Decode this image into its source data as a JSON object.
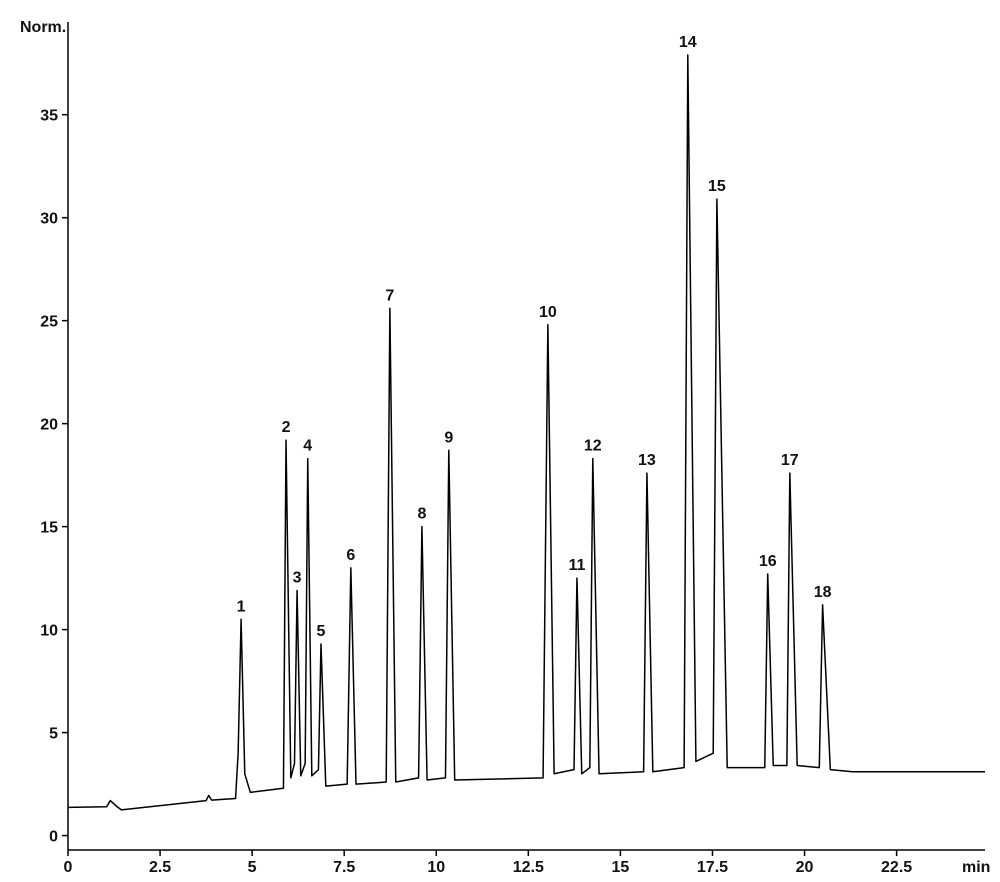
{
  "chart_data": {
    "type": "line",
    "y_label": "Norm.",
    "x_label": "min",
    "color": "#000000",
    "xlim": [
      0,
      24.9
    ],
    "ylim": [
      -0.7,
      39.5
    ],
    "xticks": [
      0,
      2.5,
      5,
      7.5,
      10,
      12.5,
      15,
      17.5,
      20,
      22.5
    ],
    "yticks": [
      0,
      5,
      10,
      15,
      20,
      25,
      30,
      35
    ],
    "x": [
      0,
      1.05,
      1.15,
      1.3,
      1.45,
      3.75,
      3.82,
      3.9,
      4.55,
      4.62,
      4.7,
      4.8,
      4.95,
      5.85,
      5.92,
      6.05,
      6.15,
      6.22,
      6.32,
      6.44,
      6.51,
      6.62,
      6.8,
      6.87,
      7.0,
      7.58,
      7.68,
      7.82,
      8.64,
      8.74,
      8.9,
      9.52,
      9.61,
      9.75,
      10.25,
      10.34,
      10.5,
      12.9,
      13.03,
      13.2,
      13.74,
      13.82,
      13.95,
      14.17,
      14.25,
      14.42,
      15.63,
      15.72,
      15.88,
      16.73,
      16.83,
      17.05,
      17.52,
      17.62,
      17.9,
      18.92,
      19.0,
      19.15,
      19.52,
      19.6,
      19.8,
      20.4,
      20.49,
      20.7,
      21.3,
      24.9
    ],
    "values": [
      1.37,
      1.4,
      1.7,
      1.45,
      1.25,
      1.7,
      1.95,
      1.72,
      1.8,
      4.0,
      10.5,
      3.0,
      2.1,
      2.3,
      19.2,
      2.8,
      3.5,
      11.9,
      2.9,
      3.5,
      18.3,
      2.9,
      3.2,
      9.3,
      2.4,
      2.5,
      13.0,
      2.5,
      2.6,
      25.6,
      2.6,
      2.8,
      15.0,
      2.7,
      2.8,
      18.7,
      2.7,
      2.8,
      24.8,
      3.0,
      3.2,
      12.5,
      3.0,
      3.3,
      18.3,
      3.0,
      3.1,
      17.6,
      3.1,
      3.3,
      37.9,
      3.6,
      4.0,
      30.9,
      3.3,
      3.3,
      12.7,
      3.4,
      3.4,
      17.6,
      3.4,
      3.3,
      11.2,
      3.2,
      3.1,
      3.1
    ],
    "peaks": [
      {
        "label": "1",
        "x": 4.7,
        "y": 10.5
      },
      {
        "label": "2",
        "x": 5.92,
        "y": 19.2
      },
      {
        "label": "3",
        "x": 6.22,
        "y": 11.9
      },
      {
        "label": "4",
        "x": 6.51,
        "y": 18.3
      },
      {
        "label": "5",
        "x": 6.87,
        "y": 9.3
      },
      {
        "label": "6",
        "x": 7.68,
        "y": 13.0
      },
      {
        "label": "7",
        "x": 8.74,
        "y": 25.6
      },
      {
        "label": "8",
        "x": 9.61,
        "y": 15.0
      },
      {
        "label": "9",
        "x": 10.34,
        "y": 18.7
      },
      {
        "label": "10",
        "x": 13.03,
        "y": 24.8
      },
      {
        "label": "11",
        "x": 13.82,
        "y": 12.5
      },
      {
        "label": "12",
        "x": 14.25,
        "y": 18.3
      },
      {
        "label": "13",
        "x": 15.72,
        "y": 17.6
      },
      {
        "label": "14",
        "x": 16.83,
        "y": 37.9
      },
      {
        "label": "15",
        "x": 17.62,
        "y": 30.9
      },
      {
        "label": "16",
        "x": 19.0,
        "y": 12.7
      },
      {
        "label": "17",
        "x": 19.6,
        "y": 17.6
      },
      {
        "label": "18",
        "x": 20.49,
        "y": 11.2
      }
    ]
  }
}
